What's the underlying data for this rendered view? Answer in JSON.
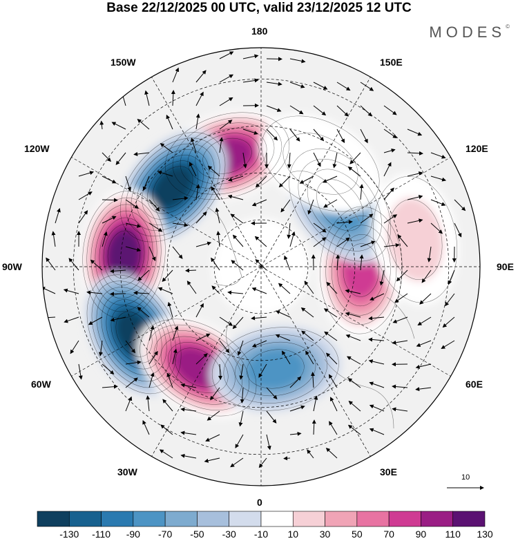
{
  "title": "Base 22/12/2025 00 UTC, valid 23/12/2025 12 UTC",
  "brand": "MODES",
  "brand_mark": "©",
  "longitude_labels": {
    "lon_180": "180",
    "lon_150e": "150E",
    "lon_120e": "120E",
    "lon_90e": "90E",
    "lon_60e": "60E",
    "lon_30e": "30E",
    "lon_0": "0",
    "lon_30w": "30W",
    "lon_60w": "60W",
    "lon_90w": "90W",
    "lon_120w": "120W",
    "lon_150w": "150W"
  },
  "reference_vector": {
    "value": "10"
  },
  "colorbar": {
    "levels": [
      "-130",
      "-110",
      "-90",
      "-70",
      "-50",
      "-30",
      "-10",
      "10",
      "30",
      "50",
      "70",
      "90",
      "110",
      "130"
    ],
    "colors": [
      "#0f3f5e",
      "#17618f",
      "#2b7ab0",
      "#4d94c4",
      "#7eabcf",
      "#a7bfdc",
      "#d3dcec",
      "#ffffff",
      "#f6d0d6",
      "#f0a4b6",
      "#e873a2",
      "#cf3b93",
      "#9a1e84",
      "#5b1272"
    ]
  },
  "chart_data": {
    "type": "contour-map",
    "projection": "north polar stereographic",
    "quantity_units": "colorbar levels",
    "anomaly_centers": [
      {
        "lon": -163,
        "lat": 53,
        "value": 120
      },
      {
        "lon": -132,
        "lat": 52,
        "value": -130
      },
      {
        "lon": -95,
        "lat": 46,
        "value": 130
      },
      {
        "lon": -62,
        "lat": 44,
        "value": -130
      },
      {
        "lon": -32,
        "lat": 52,
        "value": 115
      },
      {
        "lon": 8,
        "lat": 57,
        "value": -80
      },
      {
        "lon": 88,
        "lat": 58,
        "value": 90
      },
      {
        "lon": 128,
        "lat": 58,
        "value": -85
      },
      {
        "lon": 100,
        "lat": 40,
        "value": 45
      },
      {
        "lon": 150,
        "lat": 52,
        "value": 25
      }
    ]
  }
}
